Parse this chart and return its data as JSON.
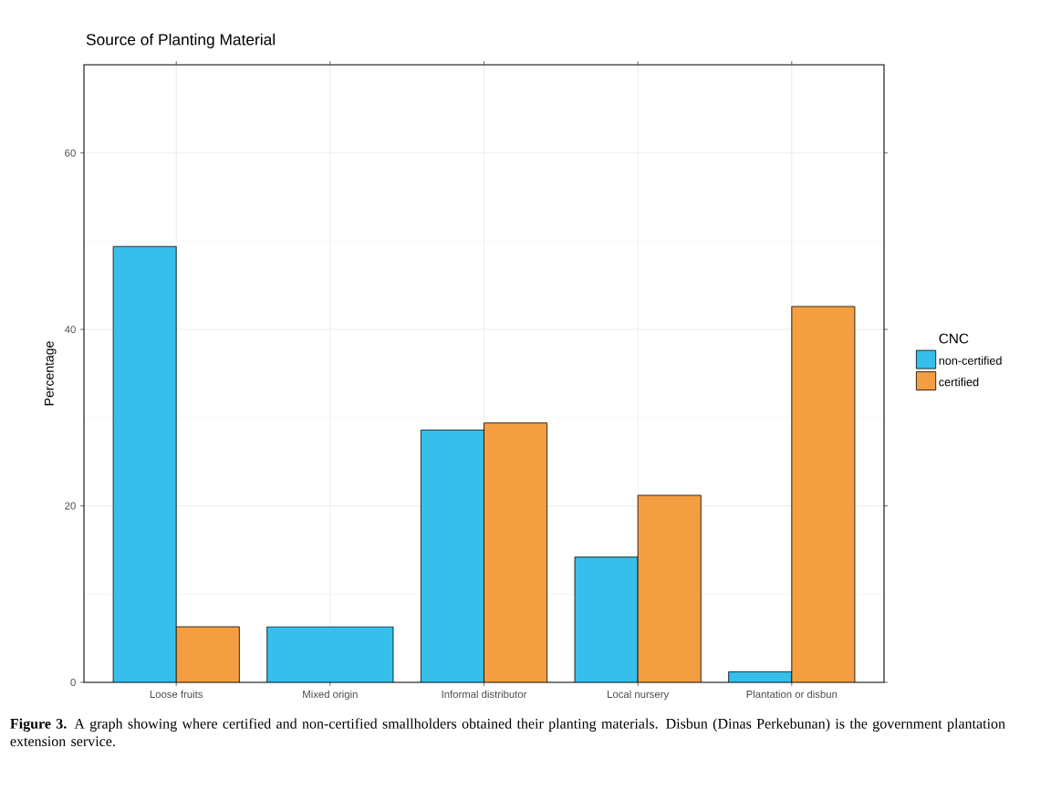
{
  "chart_data": {
    "type": "bar",
    "title": "Source of Planting Material",
    "ylabel": "Percentage",
    "legend_title": "CNC",
    "categories": [
      "Loose fruits",
      "Mixed origin",
      "Informal distributor",
      "Local nursery",
      "Plantation or disbun"
    ],
    "series": [
      {
        "name": "non-certified",
        "color": "#35bfea",
        "values": [
          49.4,
          6.3,
          28.6,
          14.2,
          1.2
        ]
      },
      {
        "name": "certified",
        "color": "#f49e42",
        "values": [
          6.3,
          null,
          29.4,
          21.2,
          42.6
        ]
      }
    ],
    "ylim": [
      0,
      70
    ],
    "yticks": [
      0,
      20,
      40,
      60
    ],
    "grid": true,
    "legend": "right",
    "annotations": [
      "**Figure 3.** A graph showing where certified and non-certified smallholders obtained their planting materials. Disbun (Dinas Perkebunan) is the government plantation extension service."
    ]
  }
}
